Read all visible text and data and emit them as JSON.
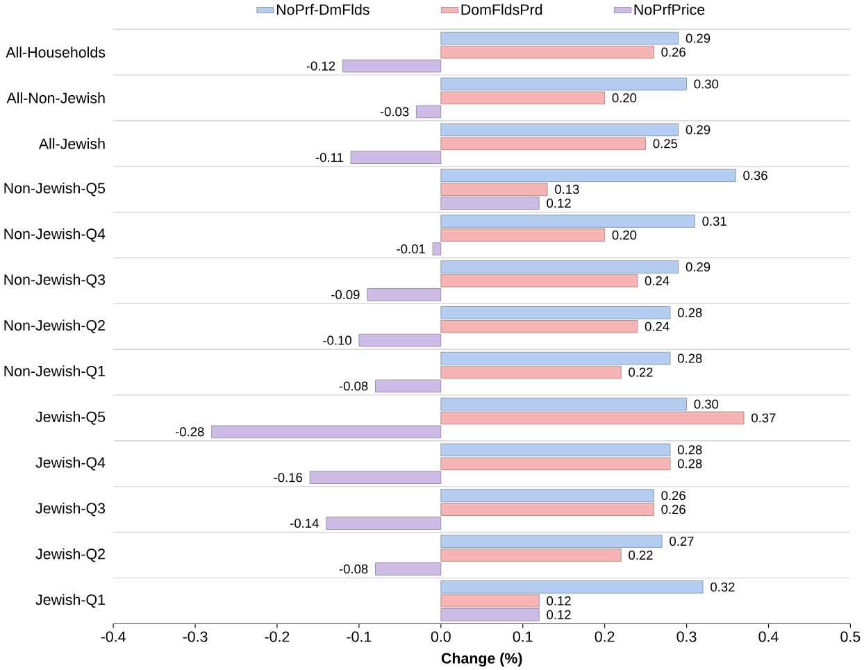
{
  "chart_data": {
    "type": "bar",
    "orientation": "horizontal",
    "xlabel": "Change (%)",
    "categories": [
      "All-Households",
      "All-Non-Jewish",
      "All-Jewish",
      "Non-Jewish-Q5",
      "Non-Jewish-Q4",
      "Non-Jewish-Q3",
      "Non-Jewish-Q2",
      "Non-Jewish-Q1",
      "Jewish-Q5",
      "Jewish-Q4",
      "Jewish-Q3",
      "Jewish-Q2",
      "Jewish-Q1"
    ],
    "series": [
      {
        "name": "NoPrf-DmFlds",
        "color": "#b4cdf0",
        "values": [
          0.29,
          0.3,
          0.29,
          0.36,
          0.31,
          0.29,
          0.28,
          0.28,
          0.3,
          0.28,
          0.26,
          0.27,
          0.32
        ],
        "value_labels": [
          "0.29",
          "0.30",
          "0.29",
          "0.36",
          "0.31",
          "0.29",
          "0.28",
          "0.28",
          "0.30",
          "0.28",
          "0.26",
          "0.27",
          "0.32"
        ]
      },
      {
        "name": "DomFldsPrd",
        "color": "#f6b4b4",
        "values": [
          0.26,
          0.2,
          0.25,
          0.13,
          0.2,
          0.24,
          0.24,
          0.22,
          0.37,
          0.28,
          0.26,
          0.22,
          0.12
        ],
        "value_labels": [
          "0.26",
          "0.20",
          "0.25",
          "0.13",
          "0.20",
          "0.24",
          "0.24",
          "0.22",
          "0.37",
          "0.28",
          "0.26",
          "0.22",
          "0.12"
        ]
      },
      {
        "name": "NoPrfPrice",
        "color": "#cdbde6",
        "values": [
          -0.12,
          -0.03,
          -0.11,
          0.12,
          -0.01,
          -0.09,
          -0.1,
          -0.08,
          -0.28,
          -0.16,
          -0.14,
          -0.08,
          0.12
        ],
        "value_labels": [
          "-0.12",
          "-0.03",
          "-0.11",
          "0.12",
          "-0.01",
          "-0.09",
          "-0.10",
          "-0.08",
          "-0.28",
          "-0.16",
          "-0.14",
          "-0.08",
          "0.12"
        ]
      }
    ],
    "xlim": [
      -0.4,
      0.5
    ],
    "xticks": [
      {
        "value": -0.4,
        "label": "-0.4"
      },
      {
        "value": -0.3,
        "label": "-0.3"
      },
      {
        "value": -0.2,
        "label": "-0.2"
      },
      {
        "value": -0.1,
        "label": "-0.1"
      },
      {
        "value": 0,
        "label": "0.0"
      },
      {
        "value": 0.1,
        "label": "0.1"
      },
      {
        "value": 0.2,
        "label": "0.2"
      },
      {
        "value": 0.3,
        "label": "0.3"
      },
      {
        "value": 0.4,
        "label": "0.4"
      },
      {
        "value": 0.5,
        "label": "0.5"
      }
    ],
    "grid": "y",
    "legend": "top"
  }
}
